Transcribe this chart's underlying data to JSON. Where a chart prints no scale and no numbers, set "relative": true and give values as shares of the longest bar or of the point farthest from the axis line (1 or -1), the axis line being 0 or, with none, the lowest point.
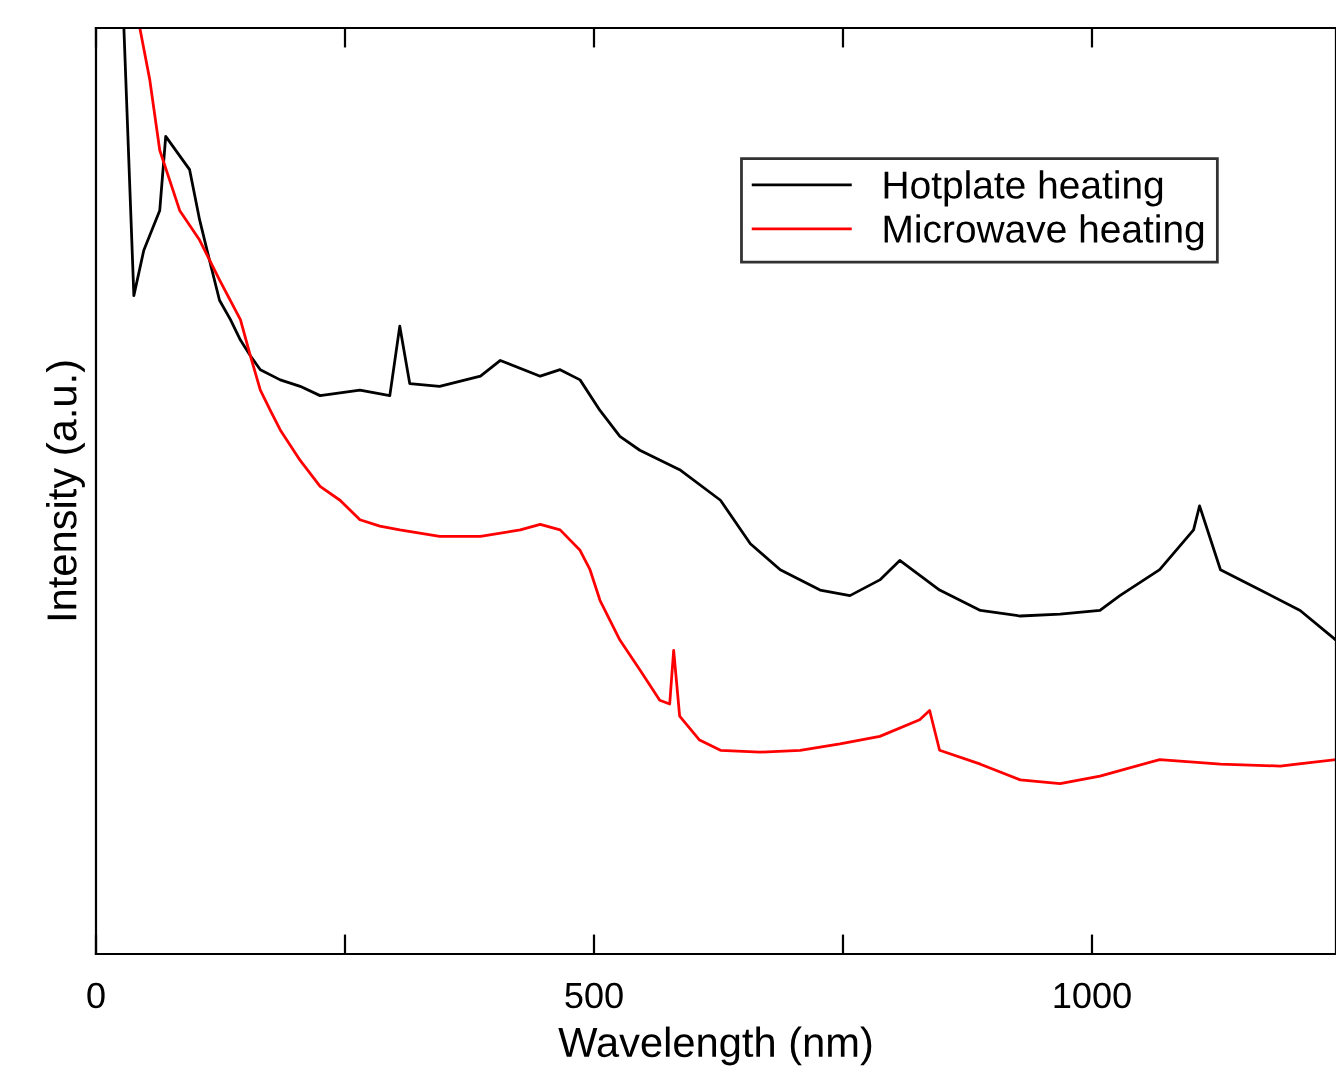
{
  "chart_data": {
    "type": "line",
    "relative": true,
    "xlabel": "Wavelength (nm)",
    "ylabel": "Intensity (a.u.)",
    "xlim": [
      0,
      1245
    ],
    "xticks": [
      0,
      {
        "value": 250,
        "label": null
      },
      500,
      {
        "value": 750,
        "label": null
      },
      1000
    ],
    "legend": "top right",
    "grid": false,
    "line_style": "solid",
    "marker": "none",
    "series": [
      {
        "name": "Hotplate heating",
        "color": "#000000",
        "x": [
          28,
          38,
          48,
          64,
          70,
          94,
          104,
          114,
          124,
          135,
          145,
          155,
          165,
          185,
          205,
          225,
          265,
          295,
          305,
          315,
          345,
          386,
          406,
          446,
          466,
          486,
          506,
          526,
          546,
          586,
          627,
          657,
          687,
          727,
          757,
          787,
          807,
          847,
          888,
          928,
          968,
          1008,
          1028,
          1068,
          1102,
          1108,
          1129,
          1169,
          1209,
          1245
        ],
        "values": [
          1.0,
          0.711,
          0.76,
          0.803,
          0.883,
          0.847,
          0.793,
          0.749,
          0.706,
          0.685,
          0.663,
          0.646,
          0.631,
          0.62,
          0.613,
          0.603,
          0.609,
          0.603,
          0.678,
          0.616,
          0.613,
          0.624,
          0.641,
          0.624,
          0.631,
          0.62,
          0.587,
          0.559,
          0.544,
          0.523,
          0.49,
          0.443,
          0.415,
          0.393,
          0.387,
          0.404,
          0.425,
          0.393,
          0.371,
          0.365,
          0.367,
          0.371,
          0.387,
          0.415,
          0.458,
          0.484,
          0.415,
          0.393,
          0.371,
          0.339
        ]
      },
      {
        "name": "Microwave heating",
        "color": "#ff0000",
        "x": [
          44,
          54,
          64,
          84,
          104,
          124,
          145,
          155,
          165,
          175,
          185,
          205,
          225,
          245,
          265,
          285,
          305,
          345,
          386,
          426,
          446,
          466,
          486,
          496,
          506,
          526,
          546,
          566,
          576,
          580,
          586,
          606,
          627,
          667,
          707,
          747,
          787,
          827,
          837,
          847,
          888,
          928,
          968,
          1008,
          1068,
          1129,
          1189,
          1245
        ],
        "values": [
          1.0,
          0.944,
          0.868,
          0.803,
          0.771,
          0.728,
          0.685,
          0.646,
          0.609,
          0.587,
          0.566,
          0.533,
          0.505,
          0.49,
          0.469,
          0.462,
          0.458,
          0.451,
          0.451,
          0.458,
          0.464,
          0.458,
          0.436,
          0.415,
          0.382,
          0.339,
          0.307,
          0.274,
          0.27,
          0.328,
          0.257,
          0.231,
          0.22,
          0.218,
          0.22,
          0.227,
          0.235,
          0.253,
          0.263,
          0.22,
          0.205,
          0.188,
          0.184,
          0.192,
          0.21,
          0.205,
          0.203,
          0.21
        ]
      }
    ]
  }
}
